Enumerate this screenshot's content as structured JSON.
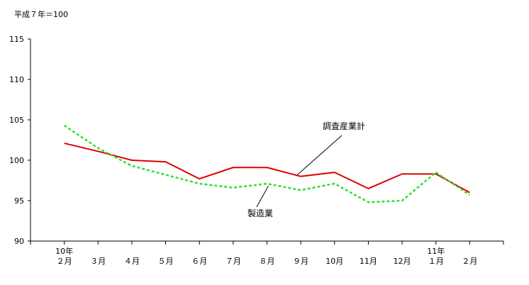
{
  "chart_data": {
    "type": "line",
    "unit_label": "平成７年＝100",
    "title": "",
    "xlabel": "",
    "ylabel": "",
    "ylim": [
      90,
      115
    ],
    "yticks": [
      90,
      95,
      100,
      105,
      110,
      115
    ],
    "grid": false,
    "categories": [
      {
        "year": "10年",
        "month": "２月"
      },
      {
        "year": "",
        "month": "３月"
      },
      {
        "year": "",
        "month": "４月"
      },
      {
        "year": "",
        "month": "５月"
      },
      {
        "year": "",
        "month": "６月"
      },
      {
        "year": "",
        "month": "７月"
      },
      {
        "year": "",
        "month": "８月"
      },
      {
        "year": "",
        "month": "９月"
      },
      {
        "year": "",
        "month": "10月"
      },
      {
        "year": "",
        "month": "11月"
      },
      {
        "year": "",
        "month": "12月"
      },
      {
        "year": "11年",
        "month": "１月"
      },
      {
        "year": "",
        "month": "２月"
      }
    ],
    "series": [
      {
        "name": "調査産業計",
        "color": "#e00000",
        "style": "solid",
        "values": [
          102.1,
          101.1,
          100.0,
          99.8,
          97.7,
          99.1,
          99.1,
          98.0,
          98.5,
          96.5,
          98.3,
          98.3,
          96.0
        ]
      },
      {
        "name": "製造業",
        "color": "#33dd33",
        "style": "dashed",
        "values": [
          104.3,
          101.5,
          99.3,
          98.2,
          97.1,
          96.6,
          97.1,
          96.3,
          97.1,
          94.8,
          95.0,
          98.5,
          95.7
        ]
      }
    ]
  }
}
